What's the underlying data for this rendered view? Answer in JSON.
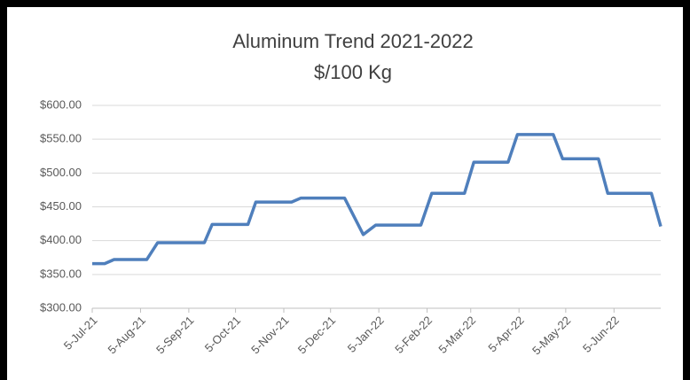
{
  "chart_data": {
    "type": "line",
    "title": "Aluminum Trend 2021-2022",
    "subtitle": "$/100 Kg",
    "x": [
      "2021-07-05",
      "2021-07-13",
      "2021-07-19",
      "2021-08-09",
      "2021-08-16",
      "2021-09-15",
      "2021-09-20",
      "2021-10-13",
      "2021-10-18",
      "2021-11-10",
      "2021-11-16",
      "2021-12-14",
      "2021-12-26",
      "2022-01-03",
      "2022-02-01",
      "2022-02-08",
      "2022-03-01",
      "2022-03-07",
      "2022-03-29",
      "2022-04-04",
      "2022-04-27",
      "2022-05-03",
      "2022-05-26",
      "2022-06-01",
      "2022-06-29",
      "2022-07-05"
    ],
    "series": [
      {
        "name": "Aluminum",
        "color": "#4f7fbc",
        "values": [
          366,
          366,
          372,
          372,
          397,
          397,
          424,
          424,
          457,
          457,
          463,
          463,
          409,
          423,
          423,
          470,
          470,
          516,
          516,
          557,
          557,
          521,
          521,
          470,
          470,
          421
        ]
      }
    ],
    "xlim": [
      "2021-07-05",
      "2022-07-05"
    ],
    "xticks": [
      {
        "value": "2021-07-05",
        "label": "5-Jul-21"
      },
      {
        "value": "2021-08-05",
        "label": "5-Aug-21"
      },
      {
        "value": "2021-09-05",
        "label": "5-Sep-21"
      },
      {
        "value": "2021-10-05",
        "label": "5-Oct-21"
      },
      {
        "value": "2021-11-05",
        "label": "5-Nov-21"
      },
      {
        "value": "2021-12-05",
        "label": "5-Dec-21"
      },
      {
        "value": "2022-01-05",
        "label": "5-Jan-22"
      },
      {
        "value": "2022-02-05",
        "label": "5-Feb-22"
      },
      {
        "value": "2022-03-05",
        "label": "5-Mar-22"
      },
      {
        "value": "2022-04-05",
        "label": "5-Apr-22"
      },
      {
        "value": "2022-05-05",
        "label": "5-May-22"
      },
      {
        "value": "2022-06-05",
        "label": "5-Jun-22"
      }
    ],
    "ylim": [
      300,
      600
    ],
    "yticks": [
      {
        "value": 300,
        "label": "$300.00"
      },
      {
        "value": 350,
        "label": "$350.00"
      },
      {
        "value": 400,
        "label": "$400.00"
      },
      {
        "value": 450,
        "label": "$450.00"
      },
      {
        "value": 500,
        "label": "$500.00"
      },
      {
        "value": 550,
        "label": "$550.00"
      },
      {
        "value": 600,
        "label": "$600.00"
      }
    ],
    "grid": true
  }
}
